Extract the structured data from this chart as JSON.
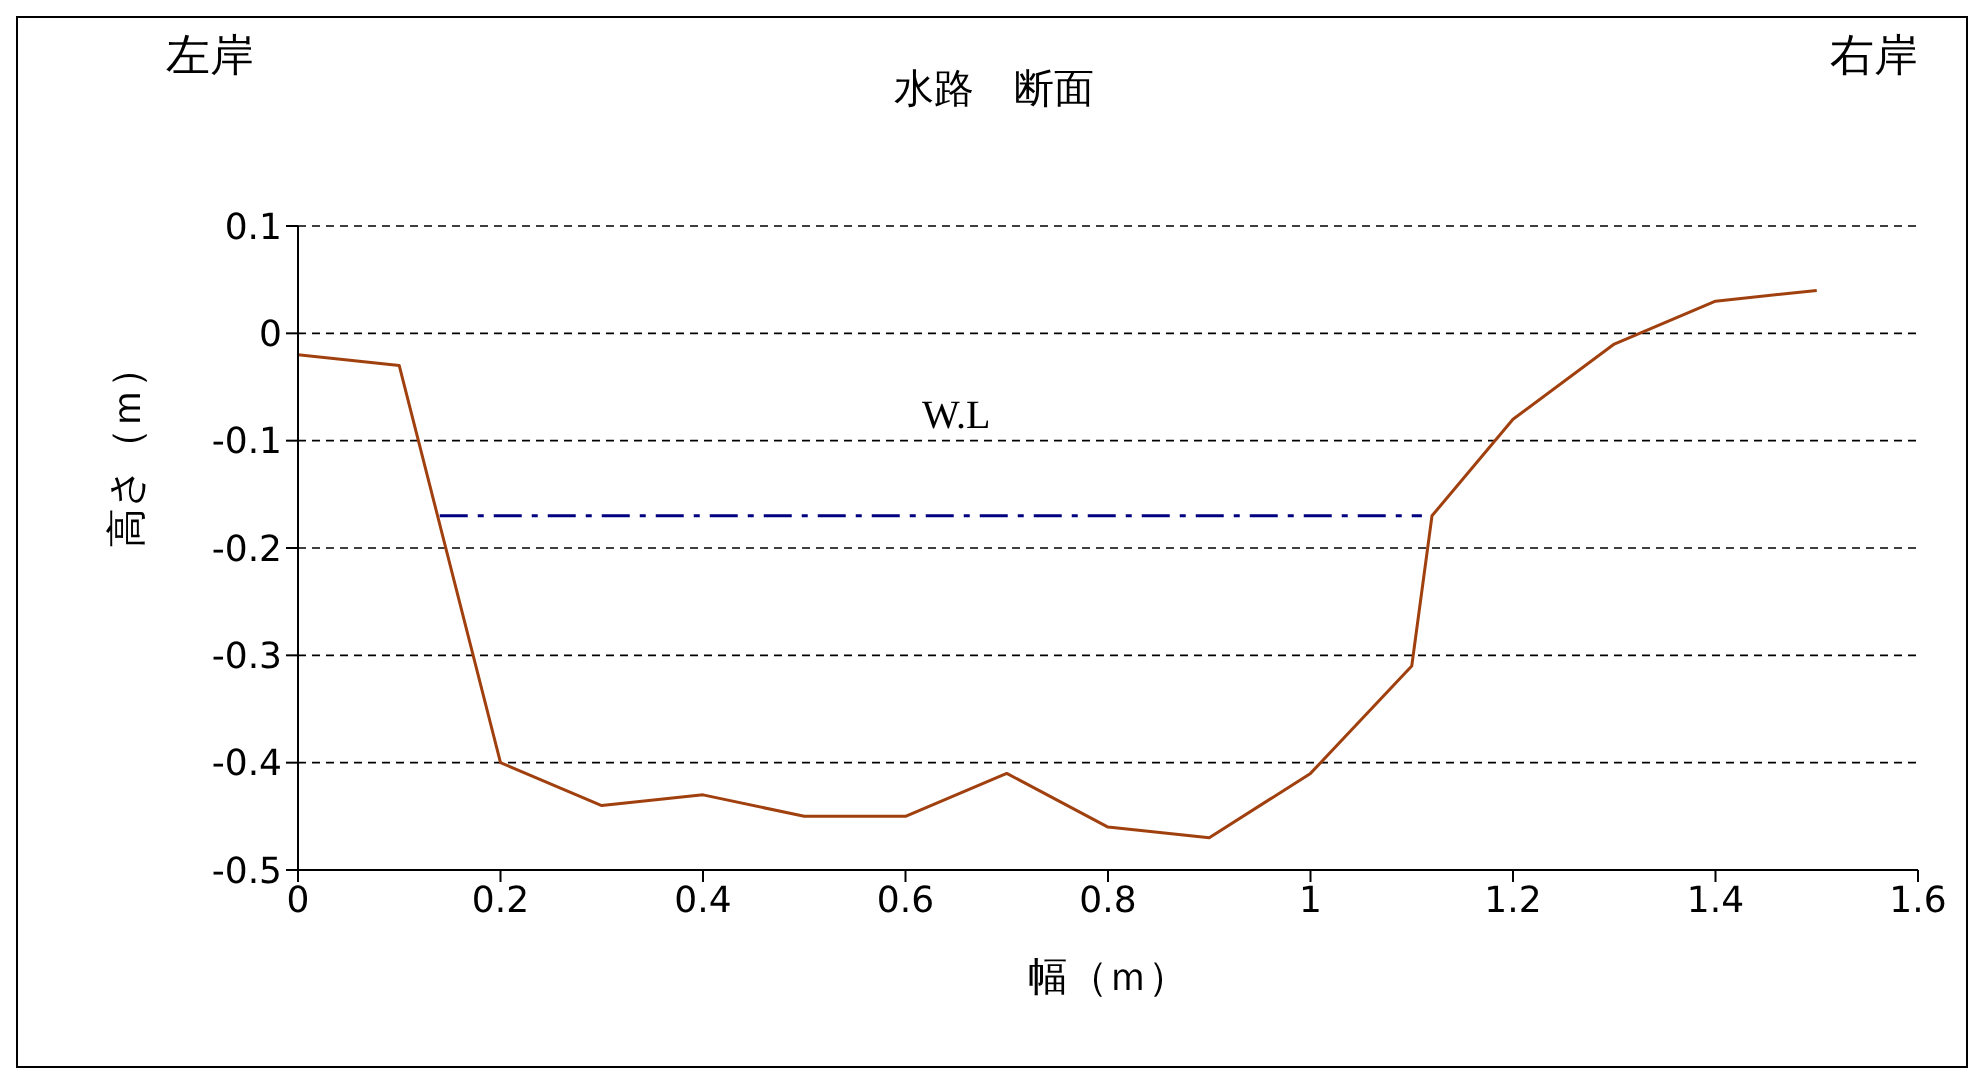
{
  "chart_data": {
    "type": "line",
    "title": "水路　断面",
    "xlabel": "幅（ｍ）",
    "ylabel": "高さ（ｍ）",
    "annotations": [
      "左岸",
      "右岸",
      "W.L"
    ],
    "series": [
      {
        "color": "#a0400f",
        "x": [
          0,
          0.1,
          0.2,
          0.3,
          0.4,
          0.5,
          0.6,
          0.7,
          0.8,
          0.9,
          1.0,
          1.1,
          1.12,
          1.2,
          1.3,
          1.4,
          1.5
        ],
        "values": [
          -0.02,
          -0.03,
          -0.4,
          -0.44,
          -0.43,
          -0.45,
          -0.45,
          -0.41,
          -0.46,
          -0.47,
          -0.41,
          -0.31,
          -0.17,
          -0.08,
          -0.01,
          0.03,
          0.04
        ]
      },
      {
        "color": "#000080",
        "x": [
          0.14,
          1.11
        ],
        "values": [
          -0.17,
          -0.17
        ],
        "line_style": "dashed"
      }
    ],
    "xlim": [
      0,
      1.6
    ],
    "xticks": [
      0,
      0.2,
      0.4,
      0.6,
      0.8,
      1,
      1.2,
      1.4,
      1.6
    ],
    "ylim": [
      -0.5,
      0.1
    ],
    "yticks": [
      -0.5,
      -0.4,
      -0.3,
      -0.2,
      -0.1,
      0,
      0.1
    ],
    "grid": "y",
    "legend": false,
    "marker": "none"
  }
}
